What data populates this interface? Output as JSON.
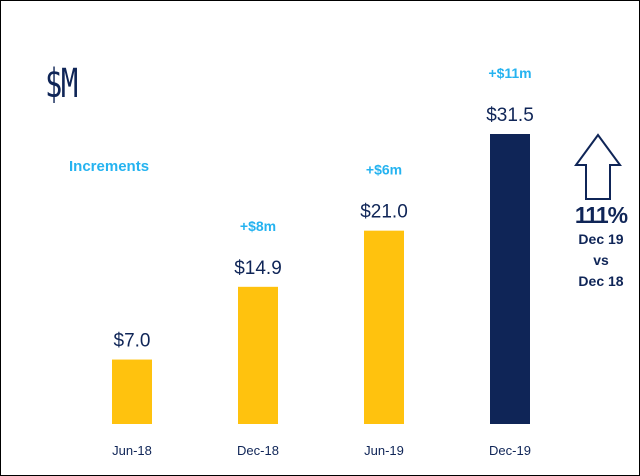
{
  "unit_label": "$M",
  "increments_label": "Increments",
  "colors": {
    "bar_default": "#ffc20e",
    "bar_highlight": "#0f2557",
    "value_text": "#0f2557",
    "increment_text": "#25b3f0",
    "axis_text": "#0f2557"
  },
  "callout": {
    "arrow_icon": "up-arrow-icon",
    "percent": "111%",
    "line1": "Dec 19",
    "line2": "vs",
    "line3": "Dec 18"
  },
  "chart_data": {
    "type": "bar",
    "categories": [
      "Jun-18",
      "Dec-18",
      "Jun-19",
      "Dec-19"
    ],
    "values": [
      7.0,
      14.9,
      21.0,
      31.5
    ],
    "value_labels": [
      "$7.0",
      "$14.9",
      "$21.0",
      "$31.5"
    ],
    "increments": [
      "",
      "+$8m",
      "+$6m",
      "+$11m"
    ],
    "highlight_index": 3,
    "title": "",
    "xlabel": "",
    "ylabel": "$M",
    "ylim": [
      0,
      31.5
    ],
    "grid": false
  }
}
